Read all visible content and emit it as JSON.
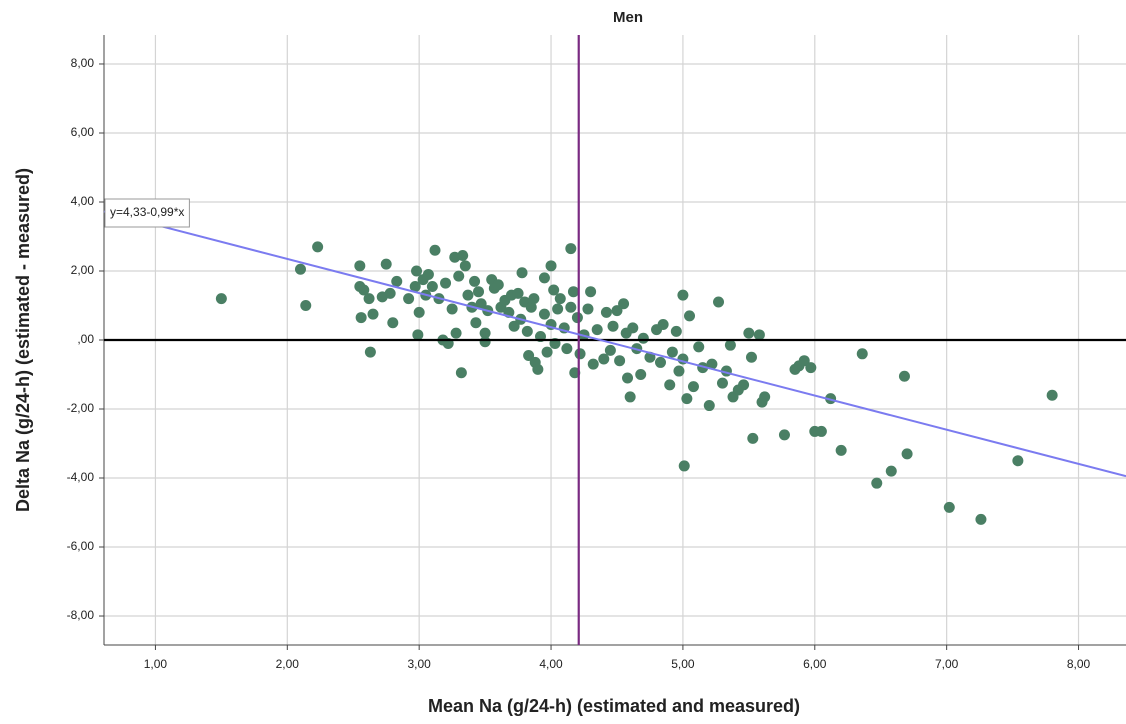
{
  "chart_data": {
    "type": "scatter",
    "title": "Men",
    "x_label": "Mean Na (g/24-h) (estimated and measured)",
    "y_label": "Delta Na (g/24-h) (estimated - measured)",
    "xlim": [
      0.61,
      8.36
    ],
    "ylim": [
      -8.84,
      8.84
    ],
    "xticks": [
      {
        "value": 1,
        "label": "1,00"
      },
      {
        "value": 2,
        "label": "2,00"
      },
      {
        "value": 3,
        "label": "3,00"
      },
      {
        "value": 4,
        "label": "4,00"
      },
      {
        "value": 5,
        "label": "5,00"
      },
      {
        "value": 6,
        "label": "6,00"
      },
      {
        "value": 7,
        "label": "7,00"
      },
      {
        "value": 8,
        "label": "8,00"
      }
    ],
    "yticks": [
      {
        "value": -8,
        "label": "-8,00"
      },
      {
        "value": -6,
        "label": "-6,00"
      },
      {
        "value": -4,
        "label": "-4,00"
      },
      {
        "value": -2,
        "label": "-2,00"
      },
      {
        "value": 0,
        "label": ",00"
      },
      {
        "value": 2,
        "label": "2,00"
      },
      {
        "value": 4,
        "label": "4,00"
      },
      {
        "value": 6,
        "label": "6,00"
      },
      {
        "value": 8,
        "label": "8,00"
      }
    ],
    "grid": true,
    "reference_lines": {
      "y": 0,
      "y_color": "#000000",
      "x": 4.21,
      "x_color": "#7a2a82"
    },
    "fit": {
      "intercept": 4.33,
      "slope": -0.99,
      "label": "y=4,33-0,99*x",
      "color": "#7b7bf0"
    },
    "x": [
      1.5,
      2.1,
      2.14,
      2.23,
      2.55,
      2.55,
      2.56,
      2.58,
      2.62,
      2.63,
      2.65,
      2.72,
      2.75,
      2.78,
      2.8,
      2.83,
      2.92,
      2.97,
      2.98,
      2.99,
      3.0,
      3.03,
      3.05,
      3.07,
      3.1,
      3.12,
      3.15,
      3.18,
      3.2,
      3.22,
      3.25,
      3.27,
      3.28,
      3.3,
      3.32,
      3.33,
      3.35,
      3.37,
      3.4,
      3.42,
      3.43,
      3.45,
      3.47,
      3.5,
      3.5,
      3.52,
      3.55,
      3.57,
      3.6,
      3.62,
      3.65,
      3.68,
      3.7,
      3.72,
      3.75,
      3.77,
      3.78,
      3.8,
      3.82,
      3.83,
      3.85,
      3.87,
      3.88,
      3.9,
      3.92,
      3.95,
      3.95,
      3.97,
      4.0,
      4.0,
      4.02,
      4.03,
      4.05,
      4.07,
      4.1,
      4.12,
      4.15,
      4.15,
      4.17,
      4.18,
      4.2,
      4.22,
      4.25,
      4.28,
      4.3,
      4.32,
      4.35,
      4.4,
      4.42,
      4.45,
      4.47,
      4.5,
      4.52,
      4.55,
      4.57,
      4.58,
      4.6,
      4.62,
      4.65,
      4.68,
      4.7,
      4.75,
      4.8,
      4.83,
      4.85,
      4.9,
      4.92,
      4.95,
      4.97,
      5.0,
      5.0,
      5.01,
      5.03,
      5.05,
      5.08,
      5.12,
      5.15,
      5.2,
      5.22,
      5.27,
      5.3,
      5.33,
      5.36,
      5.38,
      5.42,
      5.46,
      5.5,
      5.52,
      5.53,
      5.58,
      5.6,
      5.62,
      5.77,
      5.85,
      5.88,
      5.92,
      5.97,
      6.0,
      6.05,
      6.12,
      6.2,
      6.36,
      6.47,
      6.58,
      6.68,
      6.7,
      7.02,
      7.26,
      7.54,
      7.8
    ],
    "series": [
      {
        "color": "#4a7f64",
        "values": [
          1.2,
          2.05,
          1.0,
          2.7,
          1.55,
          2.15,
          0.65,
          1.45,
          1.2,
          -0.35,
          0.75,
          1.25,
          2.2,
          1.35,
          0.5,
          1.7,
          1.2,
          1.55,
          2.0,
          0.15,
          0.8,
          1.75,
          1.3,
          1.9,
          1.55,
          2.6,
          1.2,
          0.0,
          1.65,
          -0.1,
          0.9,
          2.4,
          0.2,
          1.85,
          -0.95,
          2.45,
          2.15,
          1.3,
          0.95,
          1.7,
          0.5,
          1.4,
          1.05,
          0.2,
          -0.05,
          0.85,
          1.75,
          1.5,
          1.6,
          0.95,
          1.15,
          0.8,
          1.3,
          0.4,
          1.35,
          0.6,
          1.95,
          1.1,
          0.25,
          -0.45,
          0.95,
          1.2,
          -0.65,
          -0.85,
          0.1,
          1.8,
          0.75,
          -0.35,
          2.15,
          0.45,
          1.45,
          -0.1,
          0.9,
          1.2,
          0.35,
          -0.25,
          2.65,
          0.95,
          1.4,
          -0.95,
          0.65,
          -0.4,
          0.15,
          0.9,
          1.4,
          -0.7,
          0.3,
          -0.55,
          0.8,
          -0.3,
          0.4,
          0.85,
          -0.6,
          1.05,
          0.2,
          -1.1,
          -1.65,
          0.35,
          -0.25,
          -1.0,
          0.05,
          -0.5,
          0.3,
          -0.65,
          0.45,
          -1.3,
          -0.35,
          0.25,
          -0.9,
          1.3,
          -0.55,
          -3.65,
          -1.7,
          0.7,
          -1.35,
          -0.2,
          -0.8,
          -1.9,
          -0.7,
          1.1,
          -1.25,
          -0.9,
          -0.15,
          -1.65,
          -1.45,
          -1.3,
          0.2,
          -0.5,
          -2.85,
          0.15,
          -1.8,
          -1.65,
          -2.75,
          -0.85,
          -0.75,
          -0.6,
          -0.8,
          -2.65,
          -2.65,
          -1.7,
          -3.2,
          -0.4,
          -4.15,
          -3.8,
          -1.05,
          -3.3,
          -4.85,
          -5.2,
          -3.5,
          -1.6
        ]
      }
    ]
  }
}
